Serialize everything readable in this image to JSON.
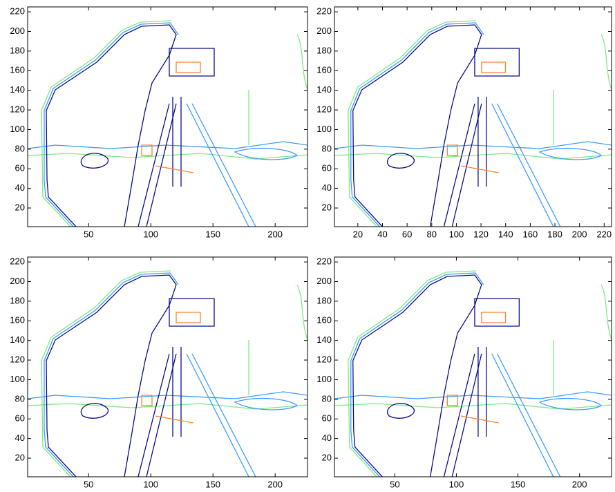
{
  "chart_data": [
    {
      "type": "contour",
      "xlim": [
        1,
        226
      ],
      "ylim": [
        1,
        225
      ],
      "xticks": [
        50,
        100,
        150,
        200
      ],
      "yticks": [
        20,
        40,
        60,
        80,
        100,
        120,
        140,
        160,
        180,
        200,
        220
      ]
    },
    {
      "type": "contour",
      "xlim": [
        1,
        226
      ],
      "ylim": [
        1,
        225
      ],
      "xticks": [
        20,
        40,
        60,
        80,
        100,
        120,
        140,
        160,
        180,
        200,
        220
      ],
      "yticks": [
        20,
        40,
        60,
        80,
        100,
        120,
        140,
        160,
        180,
        200,
        220
      ]
    },
    {
      "type": "contour",
      "xlim": [
        1,
        226
      ],
      "ylim": [
        1,
        225
      ],
      "xticks": [
        50,
        100,
        150,
        200
      ],
      "yticks": [
        20,
        40,
        60,
        80,
        100,
        120,
        140,
        160,
        180,
        200,
        220
      ]
    },
    {
      "type": "contour",
      "xlim": [
        1,
        226
      ],
      "ylim": [
        1,
        225
      ],
      "xticks": [
        50,
        100,
        150,
        200
      ],
      "yticks": [
        20,
        40,
        60,
        80,
        100,
        120,
        140,
        160,
        180,
        200,
        220
      ]
    }
  ]
}
